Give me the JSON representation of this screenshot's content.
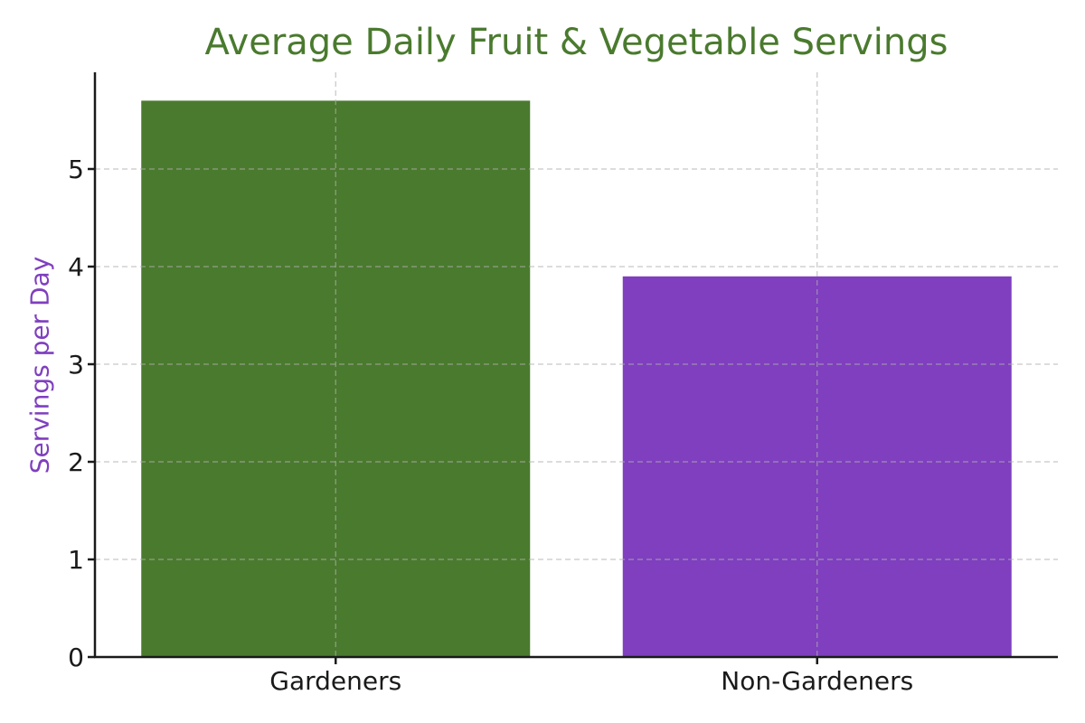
{
  "chart_data": {
    "type": "bar",
    "title": "Average Daily Fruit & Vegetable Servings",
    "xlabel": "",
    "ylabel": "Servings per Day",
    "categories": [
      "Gardeners",
      "Non-Gardeners"
    ],
    "values": [
      5.7,
      3.9
    ],
    "colors": [
      "#4a7a2e",
      "#7f3fbf"
    ],
    "yticks": [
      0,
      1,
      2,
      3,
      4,
      5
    ],
    "ylim": [
      0,
      5.985
    ],
    "grid": true,
    "legend": null
  }
}
